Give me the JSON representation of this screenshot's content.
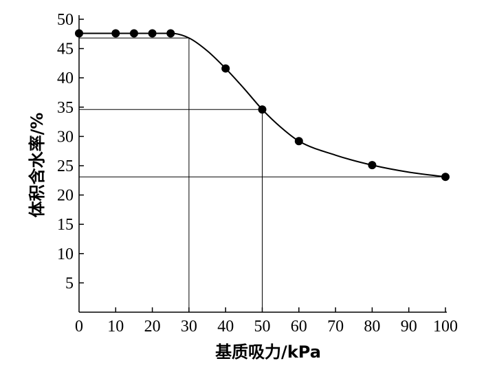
{
  "chart_data": {
    "type": "line",
    "xlabel": "基质吸力/kPa",
    "ylabel": "体积含水率/%",
    "xlim": [
      0,
      100
    ],
    "ylim": [
      0,
      50
    ],
    "xticks": [
      0,
      10,
      20,
      30,
      40,
      50,
      60,
      70,
      80,
      90,
      100
    ],
    "yticks": [
      5,
      10,
      15,
      20,
      25,
      30,
      35,
      40,
      45,
      50
    ],
    "grid": false,
    "series": [
      {
        "kind": "scatter",
        "x": [
          0,
          10,
          15,
          20,
          25,
          40,
          50,
          60,
          80,
          100
        ],
        "y": [
          47.6,
          47.6,
          47.6,
          47.6,
          47.6,
          41.6,
          34.6,
          29.2,
          25.1,
          23.1
        ]
      },
      {
        "kind": "line",
        "x": [
          0,
          25,
          30,
          35,
          40,
          45,
          50,
          55,
          60,
          70,
          80,
          90,
          100
        ],
        "y": [
          47.6,
          47.6,
          46.8,
          44.6,
          41.6,
          38.2,
          34.6,
          31.6,
          29.2,
          26.8,
          25.1,
          23.9,
          23.1
        ]
      }
    ],
    "reference_lines": [
      {
        "x": 30,
        "y": 46.8
      },
      {
        "x": 50,
        "y": 34.6
      },
      {
        "x": 100,
        "y": 23.1
      }
    ]
  }
}
